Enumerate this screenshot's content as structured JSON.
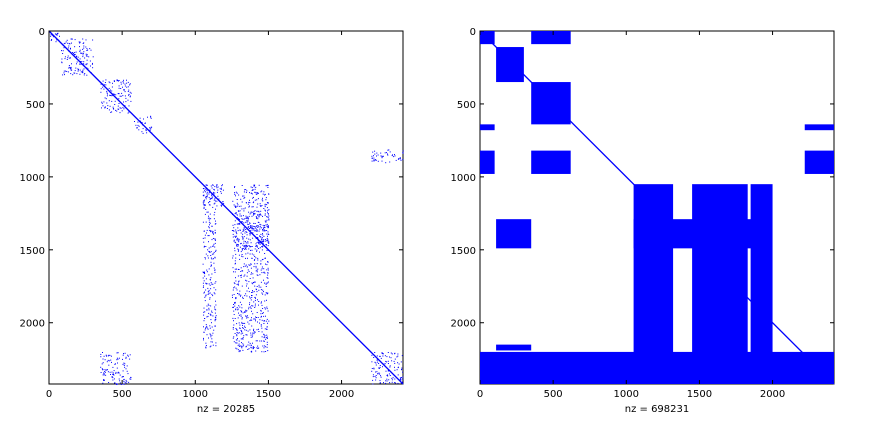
{
  "chart_data": [
    {
      "type": "spy",
      "matrix_size": [
        2420,
        2420
      ],
      "xlabel": "nz = 20285",
      "xlim": [
        0,
        2420
      ],
      "ylim": [
        0,
        2420
      ],
      "y_reversed": true,
      "xticks": [
        0,
        500,
        1000,
        1500,
        2000
      ],
      "yticks": [
        0,
        500,
        1000,
        1500,
        2000
      ],
      "marker_color": "#0000ff",
      "grid": false,
      "dense_blocks": [
        {
          "rows": [
            0,
            70
          ],
          "cols": [
            0,
            70
          ]
        },
        {
          "rows": [
            50,
            300
          ],
          "cols": [
            80,
            300
          ]
        },
        {
          "rows": [
            330,
            560
          ],
          "cols": [
            350,
            560
          ]
        },
        {
          "rows": [
            580,
            700
          ],
          "cols": [
            580,
            700
          ]
        },
        {
          "rows": [
            1050,
            2200
          ],
          "cols": [
            1050,
            1140
          ]
        },
        {
          "rows": [
            1050,
            1200
          ],
          "cols": [
            1050,
            1200
          ]
        },
        {
          "rows": [
            1250,
            1500
          ],
          "cols": [
            1250,
            1500
          ]
        },
        {
          "rows": [
            2200,
            2420
          ],
          "cols": [
            2200,
            2420
          ]
        },
        {
          "rows": [
            810,
            900
          ],
          "cols": [
            2200,
            2420
          ]
        },
        {
          "rows": [
            2200,
            2420
          ],
          "cols": [
            350,
            560
          ]
        },
        {
          "rows": [
            1050,
            2200
          ],
          "cols": [
            1250,
            1500
          ]
        }
      ]
    },
    {
      "type": "spy",
      "matrix_size": [
        2420,
        2420
      ],
      "xlabel": "nz = 698231",
      "xlim": [
        0,
        2420
      ],
      "ylim": [
        0,
        2420
      ],
      "y_reversed": true,
      "xticks": [
        0,
        500,
        1000,
        1500,
        2000
      ],
      "yticks": [
        0,
        500,
        1000,
        1500,
        2000
      ],
      "marker_color": "#0000ff",
      "grid": false,
      "dense_blocks": [
        {
          "rows": [
            0,
            90
          ],
          "cols": [
            0,
            100
          ]
        },
        {
          "rows": [
            0,
            90
          ],
          "cols": [
            350,
            620
          ]
        },
        {
          "rows": [
            110,
            350
          ],
          "cols": [
            110,
            300
          ]
        },
        {
          "rows": [
            350,
            640
          ],
          "cols": [
            350,
            620
          ]
        },
        {
          "rows": [
            820,
            980
          ],
          "cols": [
            0,
            100
          ]
        },
        {
          "rows": [
            820,
            980
          ],
          "cols": [
            350,
            620
          ]
        },
        {
          "rows": [
            1050,
            2420
          ],
          "cols": [
            1050,
            1320
          ]
        },
        {
          "rows": [
            1050,
            2420
          ],
          "cols": [
            1450,
            1830
          ]
        },
        {
          "rows": [
            1050,
            2420
          ],
          "cols": [
            1850,
            2000
          ]
        },
        {
          "rows": [
            1290,
            1490
          ],
          "cols": [
            110,
            350
          ]
        },
        {
          "rows": [
            1290,
            1490
          ],
          "cols": [
            1050,
            1900
          ]
        },
        {
          "rows": [
            2200,
            2420
          ],
          "cols": [
            0,
            2420
          ]
        },
        {
          "rows": [
            640,
            680
          ],
          "cols": [
            0,
            100
          ]
        },
        {
          "rows": [
            640,
            680
          ],
          "cols": [
            2220,
            2420
          ]
        },
        {
          "rows": [
            820,
            980
          ],
          "cols": [
            2220,
            2420
          ]
        },
        {
          "rows": [
            2150,
            2190
          ],
          "cols": [
            110,
            350
          ]
        }
      ]
    }
  ]
}
